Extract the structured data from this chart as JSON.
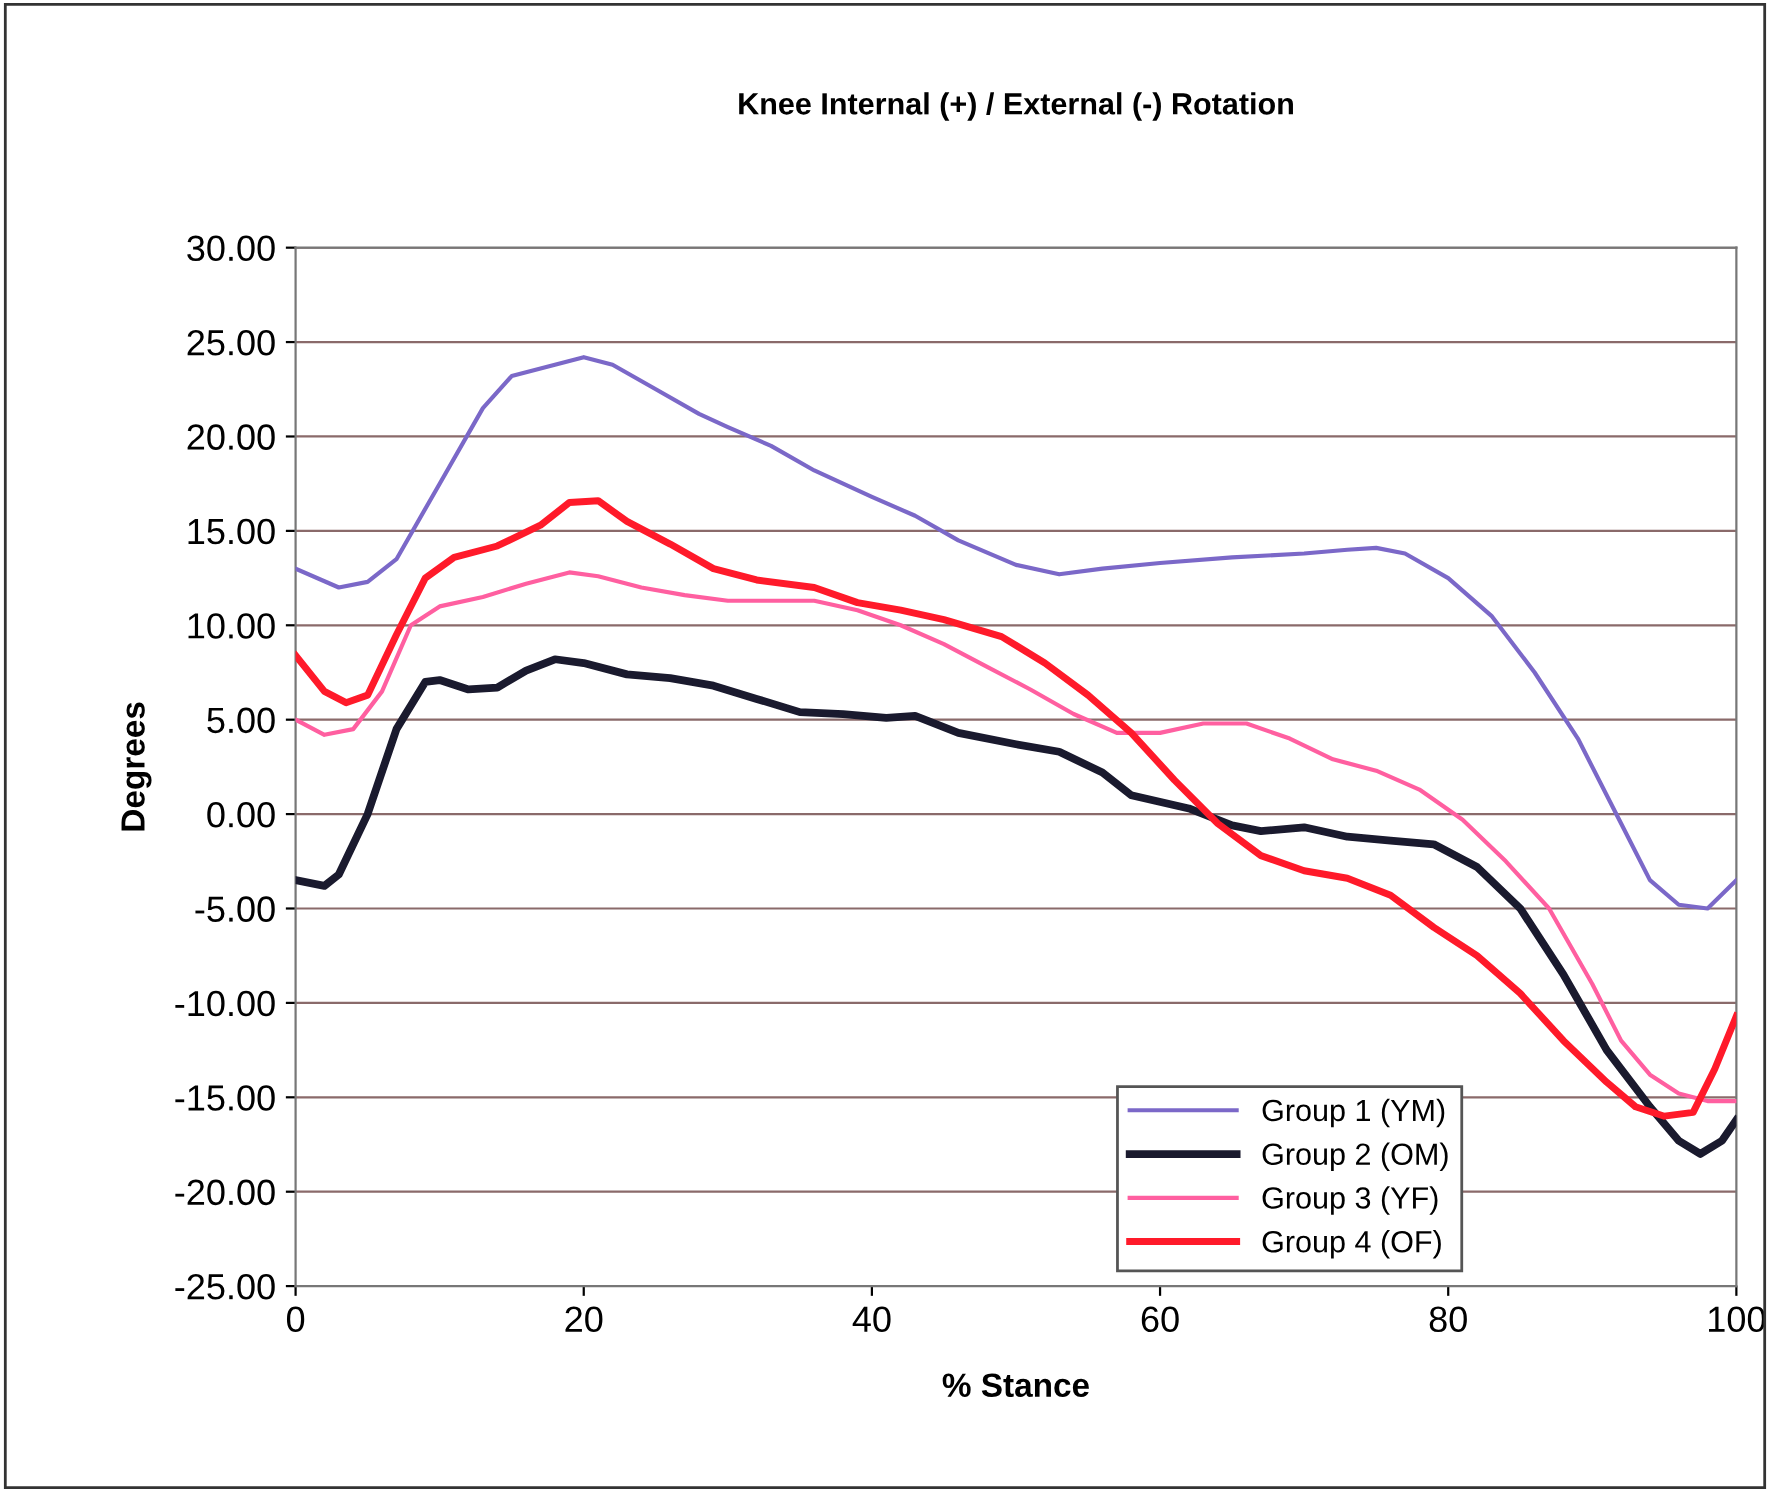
{
  "chart_data": {
    "type": "line",
    "title": "Knee Internal (+) / External (-) Rotation",
    "xlabel": "% Stance",
    "ylabel": "Degrees",
    "xlim": [
      0,
      100
    ],
    "xticks": [
      0,
      20,
      40,
      60,
      80,
      100
    ],
    "ylim": [
      -25,
      30
    ],
    "yticks": [
      {
        "value": -25,
        "label": "-25.00"
      },
      {
        "value": -20,
        "label": "-20.00"
      },
      {
        "value": -15,
        "label": "-15.00"
      },
      {
        "value": -10,
        "label": "-10.00"
      },
      {
        "value": -5,
        "label": "-5.00"
      },
      {
        "value": 0,
        "label": "0.00"
      },
      {
        "value": 5,
        "label": "5.00"
      },
      {
        "value": 10,
        "label": "10.00"
      },
      {
        "value": 15,
        "label": "15.00"
      },
      {
        "value": 20,
        "label": "20.00"
      },
      {
        "value": 25,
        "label": "25.00"
      },
      {
        "value": 30,
        "label": "30.00"
      }
    ],
    "grid": "y",
    "legend": "bottom right",
    "marker": "none",
    "line_style": "solid",
    "series": [
      {
        "name": "Group 1 (YM)",
        "color": "#7b68c8",
        "x": [
          0,
          3,
          5,
          7,
          10,
          13,
          15,
          18,
          20,
          22,
          25,
          28,
          30,
          33,
          36,
          40,
          43,
          46,
          50,
          53,
          56,
          60,
          65,
          70,
          73,
          75,
          77,
          80,
          83,
          86,
          89,
          92,
          94,
          96,
          98,
          100
        ],
        "values": [
          13.0,
          12.0,
          12.3,
          13.5,
          17.5,
          21.5,
          23.2,
          23.8,
          24.2,
          23.8,
          22.5,
          21.2,
          20.5,
          19.5,
          18.2,
          16.8,
          15.8,
          14.5,
          13.2,
          12.7,
          13.0,
          13.3,
          13.6,
          13.8,
          14.0,
          14.1,
          13.8,
          12.5,
          10.5,
          7.5,
          4.0,
          -0.5,
          -3.5,
          -4.8,
          -5.0,
          -3.5
        ]
      },
      {
        "name": "Group 2 (OM)",
        "color": "#1a1a2e",
        "x": [
          0,
          2,
          3,
          5,
          7,
          9,
          10,
          12,
          14,
          16,
          18,
          20,
          23,
          26,
          29,
          32,
          35,
          38,
          41,
          43,
          46,
          50,
          53,
          56,
          58,
          62,
          65,
          67,
          70,
          73,
          76,
          79,
          82,
          85,
          88,
          91,
          94,
          96,
          97.5,
          99,
          100
        ],
        "values": [
          -3.5,
          -3.8,
          -3.2,
          0.0,
          4.5,
          7.0,
          7.1,
          6.6,
          6.7,
          7.6,
          8.2,
          8.0,
          7.4,
          7.2,
          6.8,
          6.1,
          5.4,
          5.3,
          5.1,
          5.2,
          4.3,
          3.7,
          3.3,
          2.2,
          1.0,
          0.3,
          -0.6,
          -0.9,
          -0.7,
          -1.2,
          -1.4,
          -1.6,
          -2.8,
          -5.0,
          -8.5,
          -12.5,
          -15.5,
          -17.3,
          -18.0,
          -17.3,
          -16.2
        ]
      },
      {
        "name": "Group 3 (YF)",
        "color": "#ff5fa0",
        "x": [
          0,
          2,
          4,
          6,
          8,
          10,
          13,
          16,
          19,
          21,
          24,
          27,
          30,
          33,
          36,
          39,
          42,
          45,
          48,
          51,
          54,
          57,
          60,
          63,
          66,
          69,
          72,
          75,
          78,
          81,
          84,
          87,
          90,
          92,
          94,
          96,
          98,
          100
        ],
        "values": [
          5.0,
          4.2,
          4.5,
          6.5,
          10.0,
          11.0,
          11.5,
          12.2,
          12.8,
          12.6,
          12.0,
          11.6,
          11.3,
          11.3,
          11.3,
          10.8,
          10.0,
          9.0,
          7.8,
          6.6,
          5.3,
          4.3,
          4.3,
          4.8,
          4.8,
          4.0,
          2.9,
          2.3,
          1.3,
          -0.3,
          -2.5,
          -5.0,
          -9.0,
          -12.0,
          -13.8,
          -14.8,
          -15.2,
          -15.2
        ]
      },
      {
        "name": "Group 4 (OF)",
        "color": "#ff1a2a",
        "x": [
          0,
          2,
          3.5,
          5,
          7,
          9,
          11,
          14,
          17,
          19,
          21,
          23,
          26,
          29,
          32,
          36,
          39,
          42,
          45,
          49,
          52,
          55,
          58,
          61,
          64,
          67,
          70,
          73,
          76,
          79,
          82,
          85,
          88,
          91,
          93,
          95,
          97,
          98.5,
          100
        ],
        "values": [
          8.4,
          6.5,
          5.9,
          6.3,
          9.5,
          12.5,
          13.6,
          14.2,
          15.3,
          16.5,
          16.6,
          15.5,
          14.3,
          13.0,
          12.4,
          12.0,
          11.2,
          10.8,
          10.3,
          9.4,
          8.0,
          6.3,
          4.3,
          1.8,
          -0.5,
          -2.2,
          -3.0,
          -3.4,
          -4.3,
          -6.0,
          -7.5,
          -9.5,
          -12.0,
          -14.2,
          -15.5,
          -16.0,
          -15.8,
          -13.5,
          -10.7
        ]
      }
    ]
  }
}
